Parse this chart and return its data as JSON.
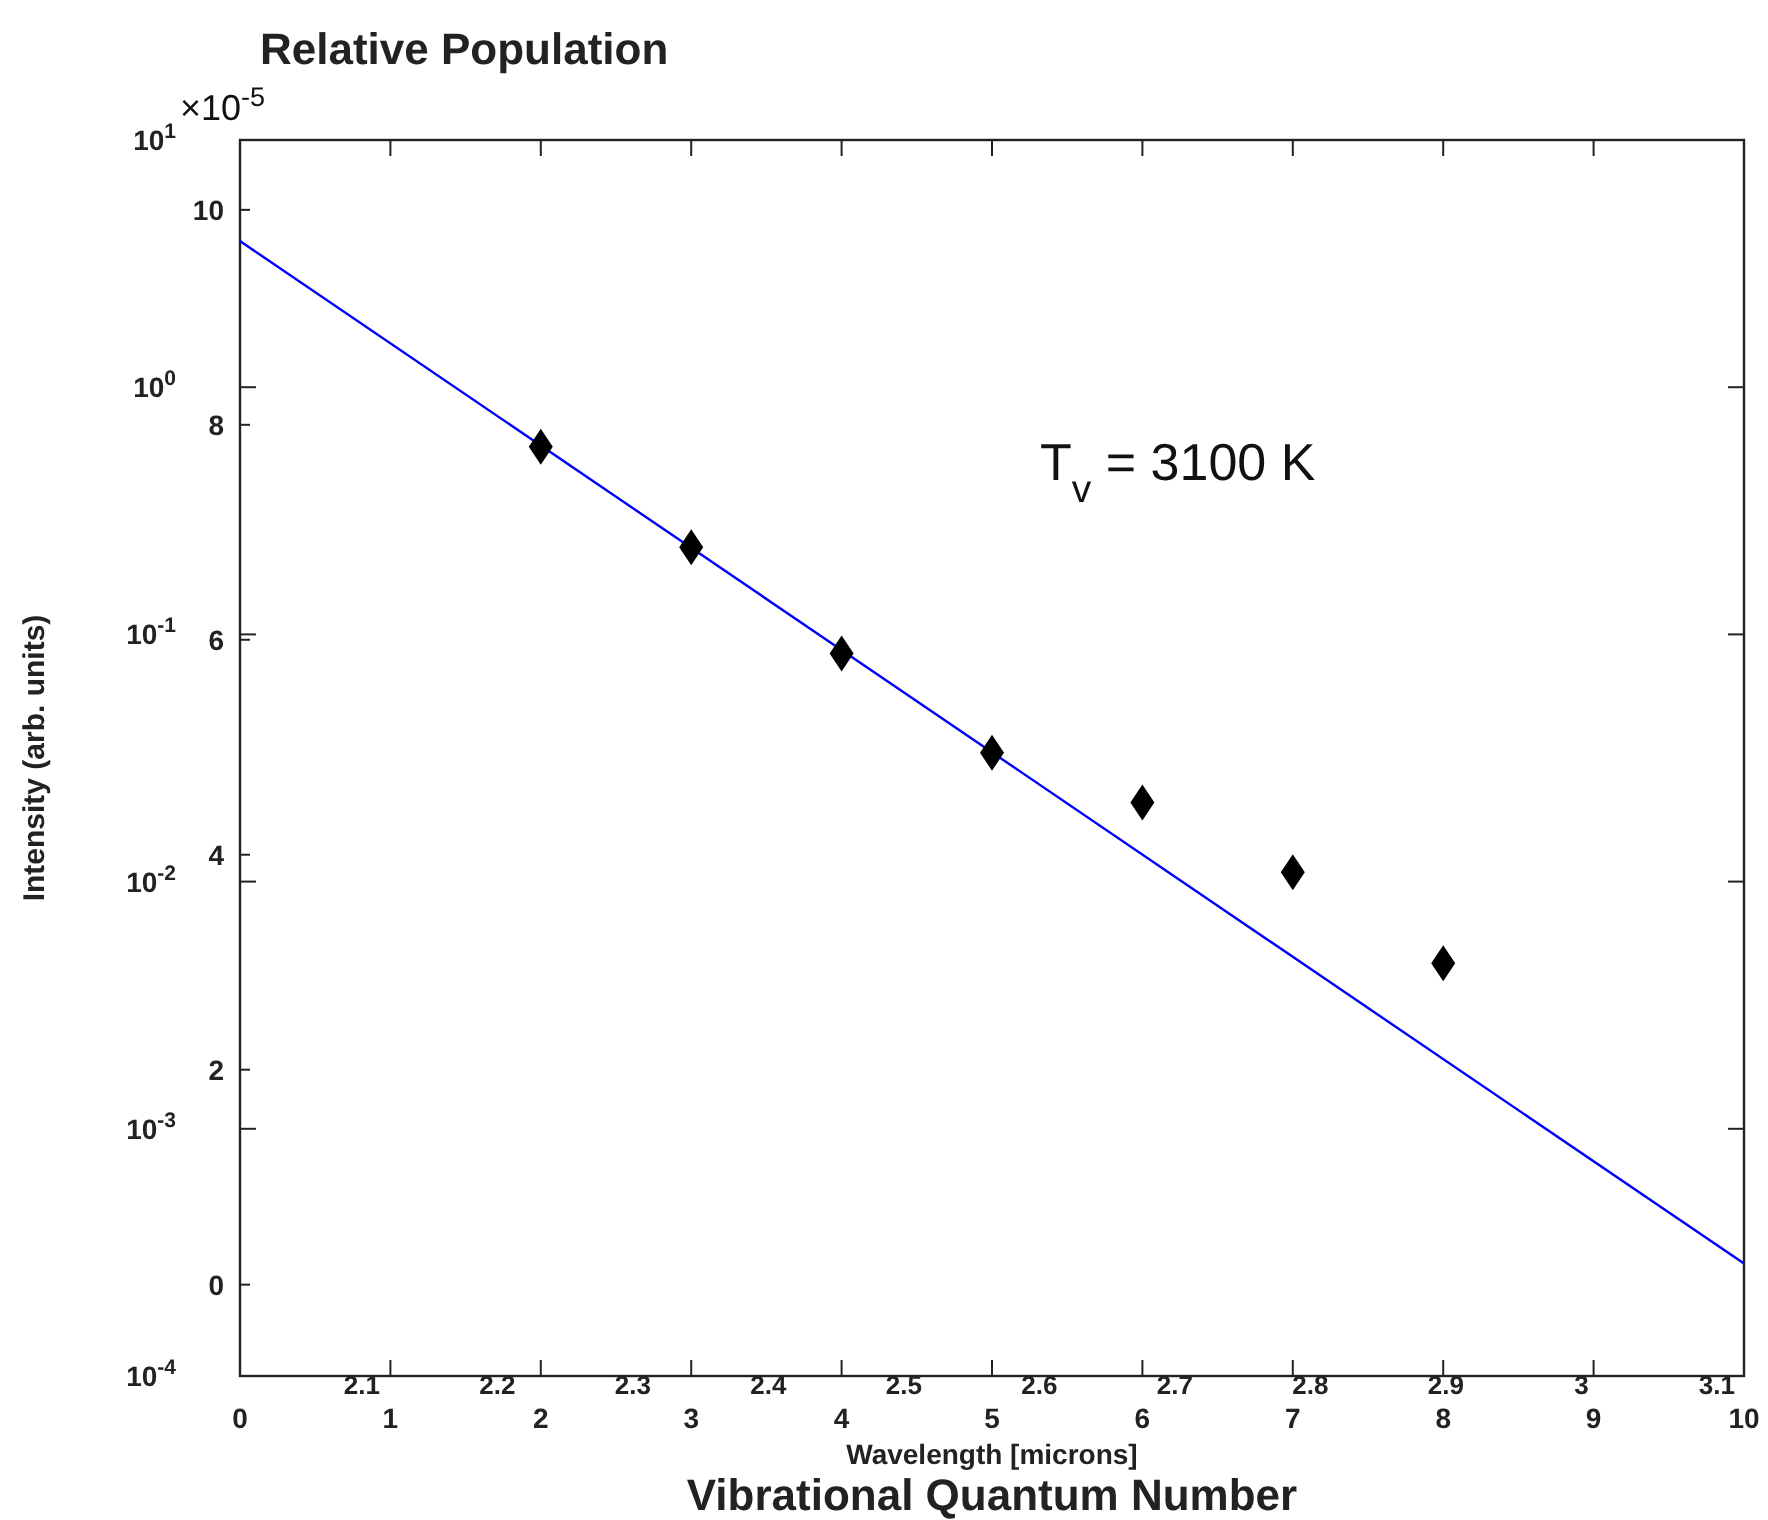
{
  "chart_data": {
    "type": "scatter",
    "title": "Relative Population",
    "xlabel": "Vibrational Quantum Number",
    "x2label": "Wavelength [microns]",
    "ylabel": "Intensity (arb. units)",
    "xlim": [
      0,
      10
    ],
    "xticks": [
      0,
      1,
      2,
      3,
      4,
      5,
      6,
      7,
      8,
      9,
      10
    ],
    "ylim": [
      0.0001,
      10
    ],
    "log": "y",
    "yticks": [
      {
        "value": 0.0001,
        "label": "10$^{-4}$"
      },
      {
        "value": 0.001,
        "label": "10$^{-3}$"
      },
      {
        "value": 0.01,
        "label": "10$^{-2}$"
      },
      {
        "value": 0.1,
        "label": "10$^{-1}$"
      },
      {
        "value": 1,
        "label": "10$^{0}$"
      },
      {
        "value": 10,
        "label": "10$^{1}$"
      }
    ],
    "x2lim": [
      2.01,
      3.12
    ],
    "x2ticks": [
      2.1,
      2.2,
      2.3,
      2.4,
      2.5,
      2.6,
      2.7,
      2.8,
      2.9,
      3,
      3.1
    ],
    "y2lim": [
      -0.85,
      10.65
    ],
    "y2ticks": [
      0,
      2,
      4,
      6,
      8,
      10
    ],
    "grid": false,
    "annotations": [
      "T$_{v}$ = 3100 K",
      "×10$^{-5}$"
    ],
    "series": [
      {
        "marker": "diamond",
        "color": "#000000",
        "x": [
          2,
          3,
          4,
          5,
          6,
          7,
          8
        ],
        "values": [
          0.574,
          0.225,
          0.0837,
          0.0332,
          0.0209,
          0.0109,
          0.00467
        ]
      },
      {
        "type": "line",
        "color": "#0000ff",
        "x": [
          0,
          10
        ],
        "values": [
          3.9,
          0.000285
        ]
      }
    ]
  }
}
